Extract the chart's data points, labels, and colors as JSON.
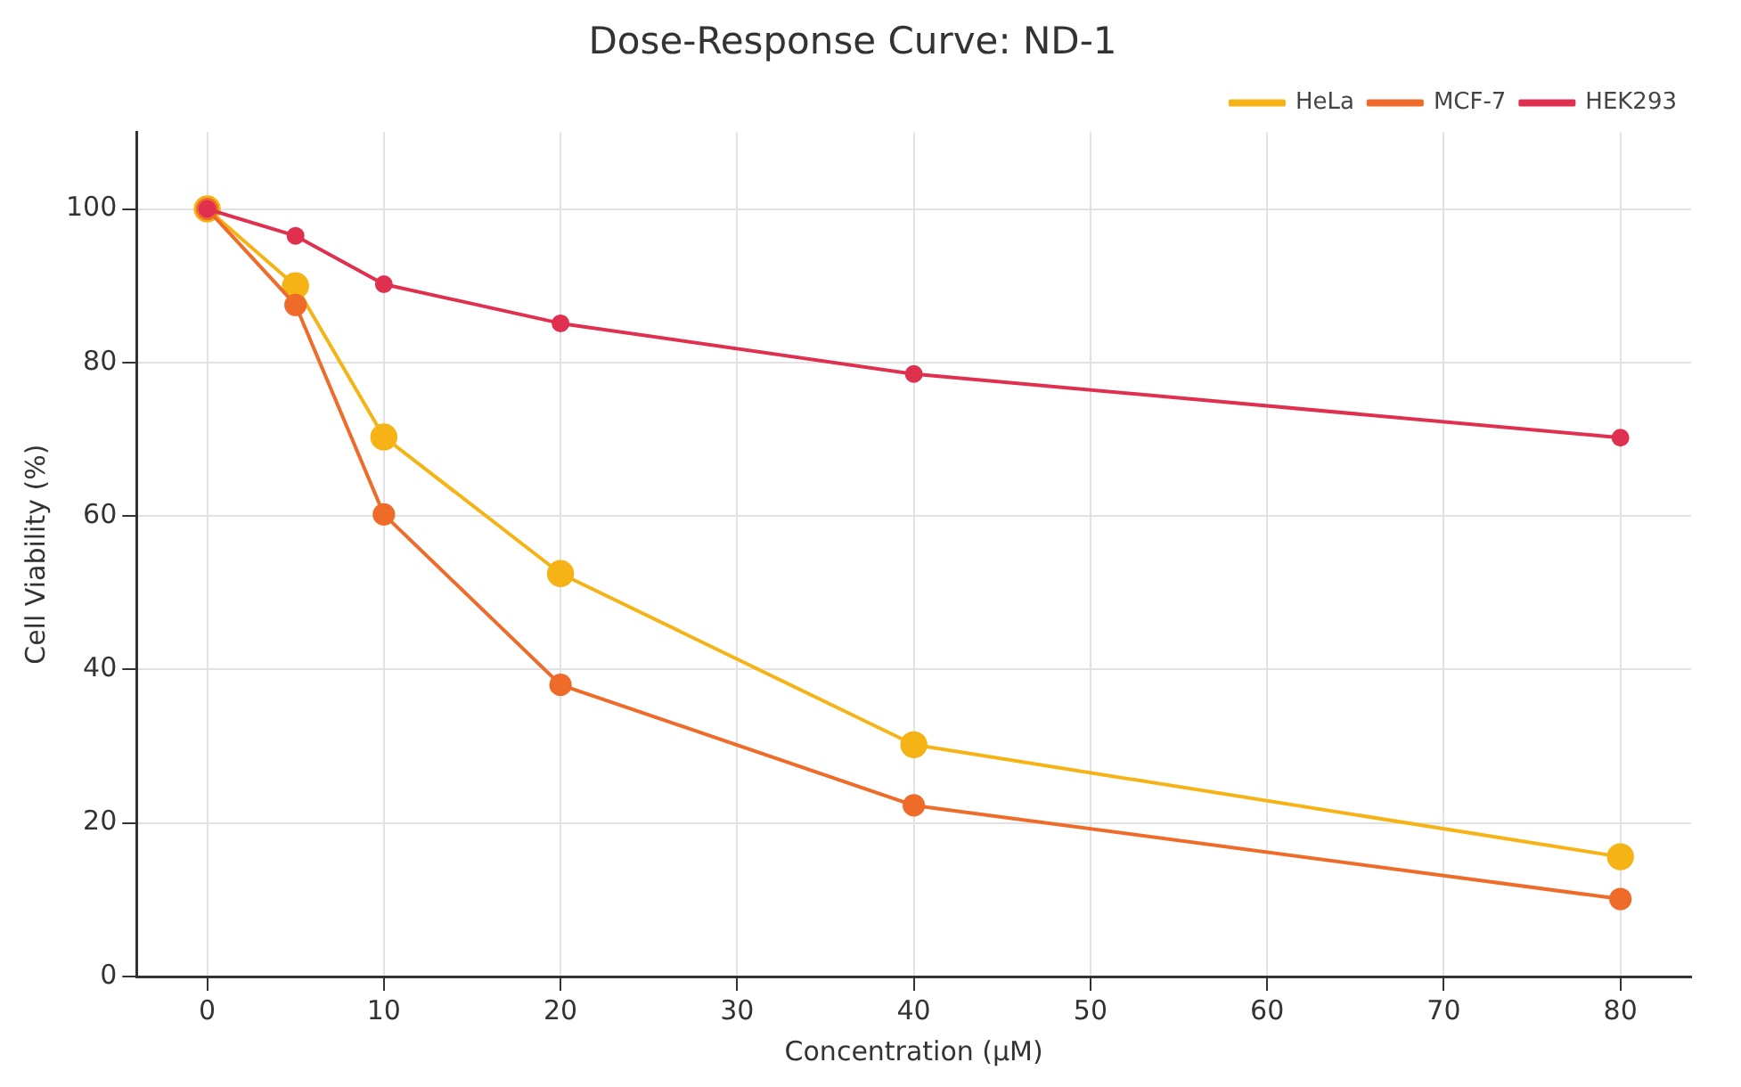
{
  "chart_data": {
    "type": "line",
    "title": "Dose-Response Curve: ND-1",
    "xlabel": "Concentration (μM)",
    "ylabel": "Cell Viability (%)",
    "x": [
      0,
      5,
      10,
      20,
      40,
      80
    ],
    "series": [
      {
        "name": "HeLa",
        "color": "#f5b316",
        "values": [
          100,
          90,
          70.3,
          52.5,
          30.2,
          15.6
        ]
      },
      {
        "name": "MCF-7",
        "color": "#ee6b2a",
        "values": [
          100,
          87.5,
          60.2,
          38,
          22.3,
          10.1
        ]
      },
      {
        "name": "HEK293",
        "color": "#e0304f",
        "values": [
          100,
          96.5,
          90.2,
          85.1,
          78.5,
          70.2
        ]
      }
    ],
    "xlim": [
      -4,
      84
    ],
    "xticks": [
      0,
      10,
      20,
      30,
      40,
      50,
      60,
      70,
      80
    ],
    "ylim": [
      0,
      110
    ],
    "yticks": [
      0,
      20,
      40,
      60,
      80,
      100
    ],
    "grid": true,
    "legend": "top right",
    "marker": "circle",
    "line_style": "solid"
  }
}
